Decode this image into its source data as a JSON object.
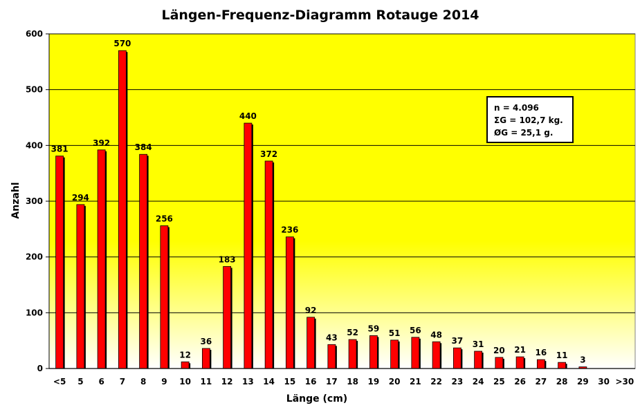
{
  "chart_data": {
    "type": "bar",
    "title": "Längen-Frequenz-Diagramm Rotauge 2014",
    "xlabel": "Länge (cm)",
    "ylabel": "Anzahl",
    "categories": [
      "<5",
      "5",
      "6",
      "7",
      "8",
      "9",
      "10",
      "11",
      "12",
      "13",
      "14",
      "15",
      "16",
      "17",
      "18",
      "19",
      "20",
      "21",
      "22",
      "23",
      "24",
      "25",
      "26",
      "27",
      "28",
      "29",
      "30",
      ">30"
    ],
    "values": [
      381,
      294,
      392,
      570,
      384,
      256,
      12,
      36,
      183,
      440,
      372,
      236,
      92,
      43,
      52,
      59,
      51,
      56,
      48,
      37,
      31,
      20,
      21,
      16,
      11,
      3,
      0,
      0
    ],
    "data_labels": [
      "381",
      "294",
      "392",
      "570",
      "384",
      "256",
      "12",
      "36",
      "183",
      "440",
      "372",
      "236",
      "92",
      "43",
      "52",
      "59",
      "51",
      "56",
      "48",
      "37",
      "31",
      "20",
      "21",
      "16",
      "11",
      "3",
      "",
      ""
    ],
    "ylim": [
      0,
      600
    ],
    "yticks": [
      0,
      100,
      200,
      300,
      400,
      500,
      600
    ],
    "grid": true,
    "legend": "none",
    "annotation_box": [
      "n = 4.096",
      "ΣG = 102,7 kg.",
      "ØG = 25,1 g."
    ],
    "colors": {
      "bar": "#ff0000",
      "bar_shadow": "#000000",
      "plot_top": "#ffff00",
      "plot_bottom": "#ffffff",
      "grid": "#000000"
    }
  }
}
